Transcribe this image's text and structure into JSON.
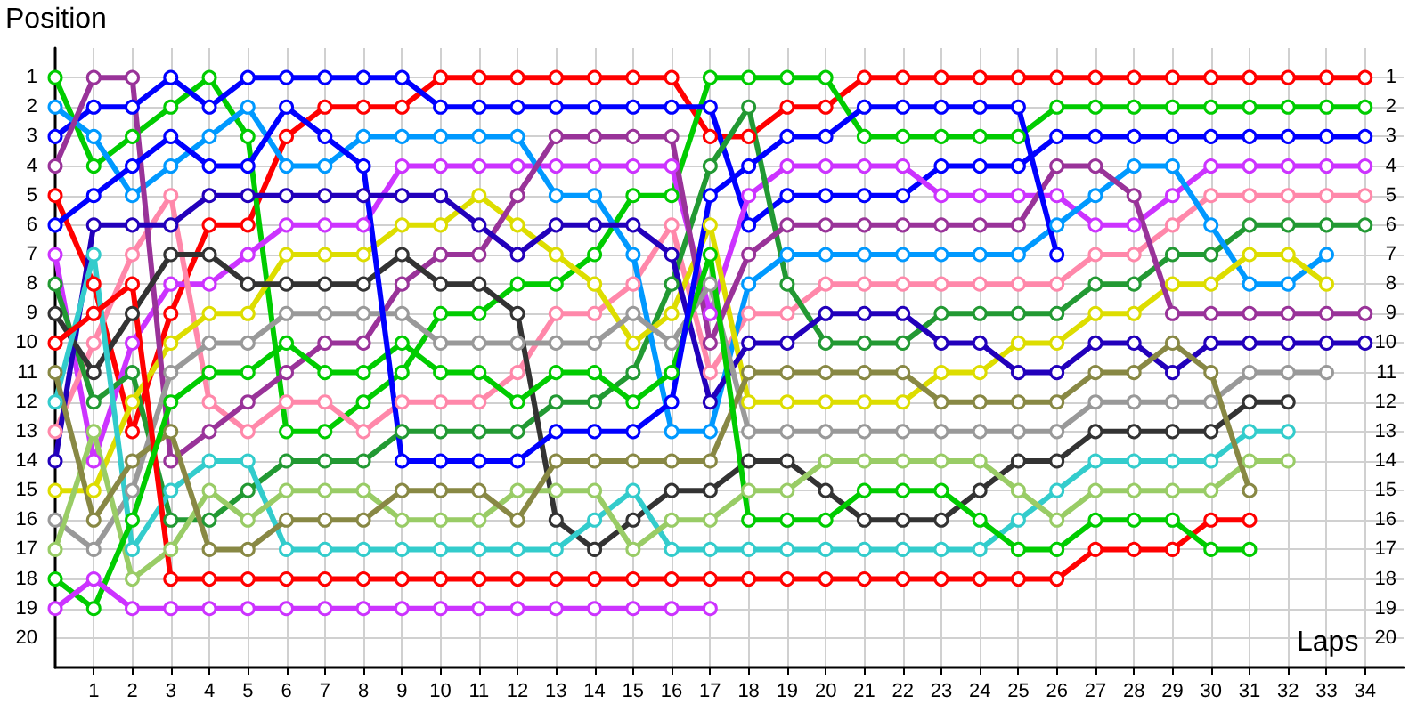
{
  "chart_data": {
    "type": "line",
    "xlabel": "Laps",
    "ylabel": "Position",
    "x": [
      0,
      1,
      2,
      3,
      4,
      5,
      6,
      7,
      8,
      9,
      10,
      11,
      12,
      13,
      14,
      15,
      16,
      17,
      18,
      19,
      20,
      21,
      22,
      23,
      24,
      25,
      26,
      27,
      28,
      29,
      30,
      31,
      32,
      33,
      34
    ],
    "xlim": [
      0,
      35
    ],
    "xticks": [
      1,
      2,
      3,
      4,
      5,
      6,
      7,
      8,
      9,
      10,
      11,
      12,
      13,
      14,
      15,
      16,
      17,
      18,
      19,
      20,
      21,
      22,
      23,
      24,
      25,
      26,
      27,
      28,
      29,
      30,
      31,
      32,
      33,
      34
    ],
    "ylim": [
      21,
      0
    ],
    "yticks": [
      1,
      2,
      3,
      4,
      5,
      6,
      7,
      8,
      9,
      10,
      11,
      12,
      13,
      14,
      15,
      16,
      17,
      18,
      19,
      20
    ],
    "y2lim": [
      21,
      0
    ],
    "y2ticks": [
      1,
      2,
      3,
      4,
      5,
      6,
      7,
      8,
      9,
      10,
      11,
      12,
      13,
      14,
      15,
      16,
      17,
      18,
      19,
      20
    ],
    "grid": true,
    "marker": "circle",
    "line_style": "solid",
    "series": [
      {
        "color": "#ff0000",
        "values": [
          5,
          8,
          13,
          9,
          6,
          6,
          3,
          2,
          2,
          2,
          1,
          1,
          1,
          1,
          1,
          1,
          1,
          3,
          3,
          2,
          2,
          1,
          1,
          1,
          1,
          1,
          1,
          1,
          1,
          1,
          1,
          1,
          1,
          1,
          1
        ]
      },
      {
        "color": "#00cc00",
        "values": [
          1,
          4,
          3,
          2,
          1,
          3,
          13,
          13,
          12,
          11,
          9,
          9,
          8,
          8,
          7,
          5,
          5,
          1,
          1,
          1,
          1,
          3,
          3,
          3,
          3,
          3,
          2,
          2,
          2,
          2,
          2,
          2,
          2,
          2,
          2
        ]
      },
      {
        "color": "#0000ff",
        "values": [
          3,
          2,
          2,
          1,
          2,
          1,
          1,
          1,
          1,
          1,
          2,
          2,
          2,
          2,
          2,
          2,
          2,
          2,
          6,
          5,
          5,
          5,
          5,
          4,
          4,
          4,
          3,
          3,
          3,
          3,
          3,
          3,
          3,
          3,
          3
        ]
      },
      {
        "color": "#cc33ff",
        "values": [
          7,
          14,
          10,
          8,
          8,
          7,
          6,
          6,
          6,
          4,
          4,
          4,
          4,
          4,
          4,
          4,
          4,
          9,
          5,
          4,
          4,
          4,
          4,
          5,
          5,
          5,
          5,
          6,
          6,
          5,
          4,
          4,
          4,
          4,
          4
        ]
      },
      {
        "color": "#ff88aa",
        "values": [
          13,
          10,
          7,
          5,
          12,
          13,
          12,
          12,
          13,
          12,
          12,
          12,
          11,
          9,
          9,
          8,
          6,
          11,
          9,
          9,
          8,
          8,
          8,
          8,
          8,
          8,
          8,
          7,
          7,
          6,
          5,
          5,
          5,
          5,
          5
        ]
      },
      {
        "color": "#229933",
        "values": [
          8,
          12,
          11,
          16,
          16,
          15,
          14,
          14,
          14,
          13,
          13,
          13,
          13,
          12,
          12,
          11,
          8,
          4,
          2,
          8,
          10,
          10,
          10,
          9,
          9,
          9,
          9,
          8,
          8,
          7,
          7,
          6,
          6,
          6,
          6
        ]
      },
      {
        "color": "#0099ff",
        "values": [
          2,
          3,
          5,
          4,
          3,
          2,
          4,
          4,
          3,
          3,
          3,
          3,
          3,
          5,
          5,
          7,
          13,
          13,
          8,
          7,
          7,
          7,
          7,
          7,
          7,
          7,
          6,
          5,
          4,
          4,
          6,
          8,
          8,
          7,
          null
        ]
      },
      {
        "color": "#dddd00",
        "values": [
          15,
          15,
          12,
          10,
          9,
          9,
          7,
          7,
          7,
          6,
          6,
          5,
          6,
          7,
          8,
          10,
          9,
          6,
          12,
          12,
          12,
          12,
          12,
          11,
          11,
          10,
          10,
          9,
          9,
          8,
          8,
          7,
          7,
          8,
          null
        ]
      },
      {
        "color": "#993399",
        "values": [
          4,
          1,
          1,
          14,
          13,
          12,
          11,
          10,
          10,
          8,
          7,
          7,
          5,
          3,
          3,
          3,
          3,
          10,
          7,
          6,
          6,
          6,
          6,
          6,
          6,
          6,
          4,
          4,
          5,
          9,
          9,
          9,
          9,
          9,
          9
        ]
      },
      {
        "color": "#2200bb",
        "values": [
          14,
          6,
          6,
          6,
          5,
          5,
          5,
          5,
          5,
          5,
          5,
          6,
          7,
          6,
          6,
          6,
          7,
          12,
          10,
          10,
          9,
          9,
          9,
          10,
          10,
          11,
          11,
          10,
          10,
          11,
          10,
          10,
          10,
          10,
          10
        ]
      },
      {
        "color": "#999999",
        "values": [
          16,
          17,
          15,
          11,
          10,
          10,
          9,
          9,
          9,
          9,
          10,
          10,
          10,
          10,
          10,
          9,
          10,
          8,
          13,
          13,
          13,
          13,
          13,
          13,
          13,
          13,
          13,
          12,
          12,
          12,
          12,
          11,
          11,
          11,
          null
        ]
      },
      {
        "color": "#333333",
        "values": [
          9,
          11,
          9,
          7,
          7,
          8,
          8,
          8,
          8,
          7,
          8,
          8,
          9,
          16,
          17,
          16,
          15,
          15,
          14,
          14,
          15,
          16,
          16,
          16,
          15,
          14,
          14,
          13,
          13,
          13,
          13,
          12,
          12,
          null,
          null
        ]
      },
      {
        "color": "#33cccc",
        "values": [
          12,
          7,
          17,
          15,
          14,
          14,
          17,
          17,
          17,
          17,
          17,
          17,
          17,
          17,
          16,
          15,
          17,
          17,
          17,
          17,
          17,
          17,
          17,
          17,
          17,
          16,
          15,
          14,
          14,
          14,
          14,
          13,
          13,
          null,
          null
        ]
      },
      {
        "color": "#99cc66",
        "values": [
          17,
          13,
          18,
          17,
          15,
          16,
          15,
          15,
          15,
          16,
          16,
          16,
          15,
          15,
          15,
          17,
          16,
          16,
          15,
          15,
          14,
          14,
          14,
          14,
          14,
          15,
          16,
          15,
          15,
          15,
          15,
          14,
          14,
          null,
          null
        ]
      },
      {
        "color": "#888844",
        "values": [
          11,
          16,
          14,
          13,
          17,
          17,
          16,
          16,
          16,
          15,
          15,
          15,
          16,
          14,
          14,
          14,
          14,
          14,
          11,
          11,
          11,
          11,
          11,
          12,
          12,
          12,
          12,
          11,
          11,
          10,
          11,
          15,
          null,
          null,
          null
        ]
      },
      {
        "color": "#ff0000",
        "values": [
          10,
          9,
          8,
          18,
          18,
          18,
          18,
          18,
          18,
          18,
          18,
          18,
          18,
          18,
          18,
          18,
          18,
          18,
          18,
          18,
          18,
          18,
          18,
          18,
          18,
          18,
          18,
          17,
          17,
          17,
          16,
          16,
          null,
          null,
          null
        ]
      },
      {
        "color": "#00cc00",
        "values": [
          18,
          19,
          16,
          12,
          11,
          11,
          10,
          11,
          11,
          10,
          11,
          11,
          12,
          11,
          11,
          12,
          11,
          7,
          16,
          16,
          16,
          15,
          15,
          15,
          16,
          17,
          17,
          16,
          16,
          16,
          17,
          17,
          null,
          null,
          null
        ]
      },
      {
        "color": "#0000ff",
        "values": [
          6,
          5,
          4,
          3,
          4,
          4,
          2,
          3,
          4,
          14,
          14,
          14,
          14,
          13,
          13,
          13,
          12,
          5,
          4,
          3,
          3,
          2,
          2,
          2,
          2,
          2,
          7,
          null,
          null,
          null,
          null,
          null,
          null,
          null,
          null
        ]
      },
      {
        "color": "#cc33ff",
        "values": [
          19,
          18,
          19,
          19,
          19,
          19,
          19,
          19,
          19,
          19,
          19,
          19,
          19,
          19,
          19,
          19,
          19,
          19,
          null,
          null,
          null,
          null,
          null,
          null,
          null,
          null,
          null,
          null,
          null,
          null,
          null,
          null,
          null,
          null,
          null
        ]
      }
    ]
  }
}
